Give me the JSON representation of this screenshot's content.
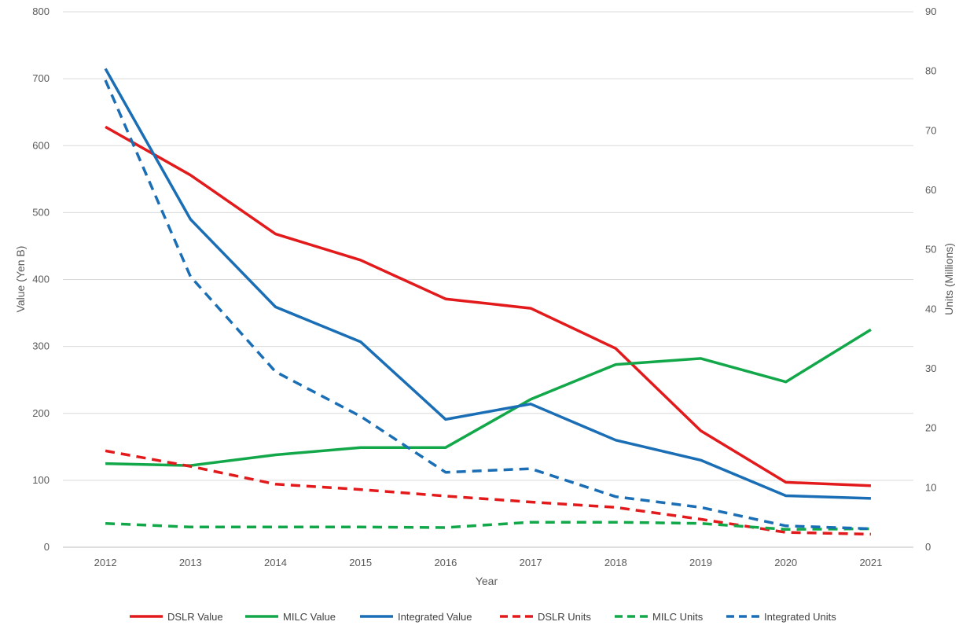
{
  "chart_data": {
    "type": "line",
    "title": "",
    "xlabel": "Year",
    "ylabel": "Value (Yen B)",
    "y2label": "Units (Millions)",
    "ylim": [
      0,
      800
    ],
    "y2lim": [
      0,
      90
    ],
    "yticks": [
      0,
      100,
      200,
      300,
      400,
      500,
      600,
      700,
      800
    ],
    "y2ticks": [
      0,
      10,
      20,
      30,
      40,
      50,
      60,
      70,
      80,
      90
    ],
    "x": [
      "2012",
      "2013",
      "2014",
      "2015",
      "2016",
      "2017",
      "2018",
      "2019",
      "2020",
      "2021"
    ],
    "grid": true,
    "legend_position": "bottom",
    "series": [
      {
        "name": "DSLR Value",
        "axis": "left",
        "style": "solid",
        "color": "#e31a1c",
        "values": [
          628,
          556,
          468,
          429,
          371,
          357,
          297,
          174,
          97,
          92
        ]
      },
      {
        "name": "MILC Value",
        "axis": "left",
        "style": "solid",
        "color": "#12a84a",
        "values": [
          125,
          122,
          138,
          149,
          149,
          221,
          273,
          282,
          247,
          325
        ]
      },
      {
        "name": "Integrated Value",
        "axis": "left",
        "style": "solid",
        "color": "#1a6eb5",
        "values": [
          715,
          490,
          359,
          307,
          191,
          214,
          160,
          130,
          77,
          73
        ]
      },
      {
        "name": "DSLR Units",
        "axis": "right",
        "style": "dashed",
        "color": "#e31a1c",
        "values": [
          16.2,
          13.6,
          10.6,
          9.7,
          8.6,
          7.6,
          6.7,
          4.7,
          2.5,
          2.2
        ]
      },
      {
        "name": "MILC Units",
        "axis": "right",
        "style": "dashed",
        "color": "#12a84a",
        "values": [
          4.0,
          3.4,
          3.4,
          3.4,
          3.3,
          4.2,
          4.2,
          4.0,
          3.0,
          3.1
        ]
      },
      {
        "name": "Integrated Units",
        "axis": "right",
        "style": "dashed",
        "color": "#1a6eb5",
        "values": [
          78.5,
          45.5,
          29.5,
          22.0,
          12.6,
          13.2,
          8.5,
          6.7,
          3.6,
          3.1
        ]
      }
    ]
  }
}
